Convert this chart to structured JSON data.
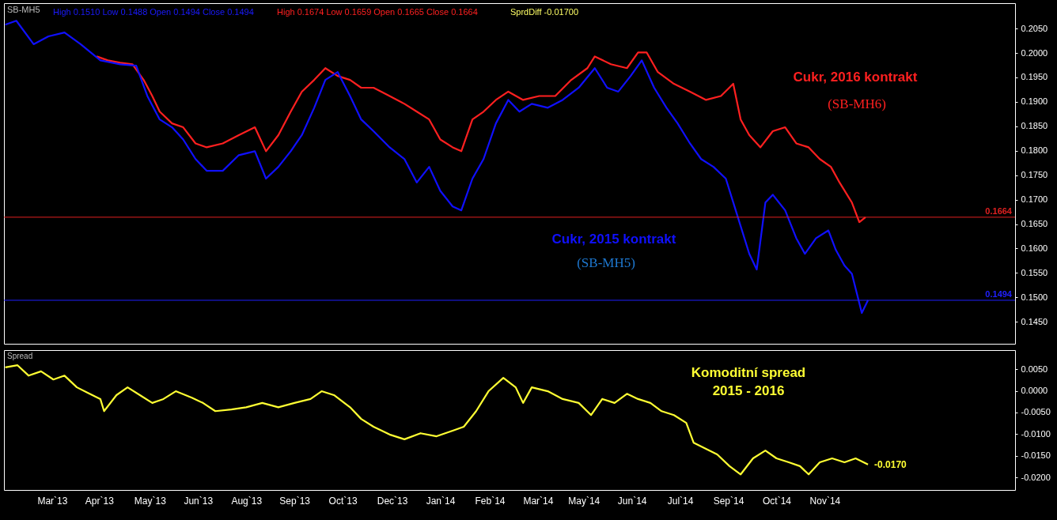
{
  "chart_data": [
    {
      "type": "line",
      "xlim": [
        "2013-01-23",
        "2015-04-21"
      ],
      "ylim": [
        0.1405,
        0.2102
      ],
      "tick_labels": "y",
      "yticks": [
        {
          "value": 0.145,
          "label": "0.1450"
        },
        {
          "value": 0.15,
          "label": "0.1500"
        },
        {
          "value": 0.155,
          "label": "0.1550"
        },
        {
          "value": 0.16,
          "label": "0.1600"
        },
        {
          "value": 0.165,
          "label": "0.1650"
        },
        {
          "value": 0.17,
          "label": "0.1700"
        },
        {
          "value": 0.175,
          "label": "0.1750"
        },
        {
          "value": 0.18,
          "label": "0.1800"
        },
        {
          "value": 0.185,
          "label": "0.1850"
        },
        {
          "value": 0.19,
          "label": "0.1900"
        },
        {
          "value": 0.195,
          "label": "0.1950"
        },
        {
          "value": 0.2,
          "label": "0.2000"
        },
        {
          "value": 0.205,
          "label": "0.2050"
        }
      ],
      "series": [
        {
          "name": "Cukr, 2016 kontrakt",
          "color": "#ff2020",
          "x": [
            "2013-04-08",
            "2013-04-17",
            "2013-04-27",
            "2013-05-07",
            "2013-05-16",
            "2013-05-23",
            "2013-05-29",
            "2013-06-08",
            "2013-06-17",
            "2013-06-27",
            "2013-07-06",
            "2013-07-19",
            "2013-08-01",
            "2013-08-14",
            "2013-08-23",
            "2013-09-02",
            "2013-09-12",
            "2013-09-21",
            "2013-10-01",
            "2013-10-10",
            "2013-10-20",
            "2013-10-30",
            "2013-11-08",
            "2013-11-18",
            "2013-12-01",
            "2013-12-13",
            "2013-12-23",
            "2014-01-02",
            "2014-01-11",
            "2014-01-21",
            "2014-01-28",
            "2014-02-06",
            "2014-02-15",
            "2014-02-25",
            "2014-03-07",
            "2014-03-19",
            "2014-04-01",
            "2014-04-14",
            "2014-04-27",
            "2014-05-10",
            "2014-05-16",
            "2014-05-29",
            "2014-06-11",
            "2014-06-20",
            "2014-06-27",
            "2014-07-06",
            "2014-07-19",
            "2014-08-01",
            "2014-08-14",
            "2014-08-26",
            "2014-09-05",
            "2014-09-11",
            "2014-09-18",
            "2014-09-27",
            "2014-10-07",
            "2014-10-17",
            "2014-10-26",
            "2014-11-05",
            "2014-11-14",
            "2014-11-23",
            "2014-11-30",
            "2014-12-10",
            "2014-12-16",
            "2014-12-21"
          ],
          "values": [
            0.1993,
            0.1985,
            0.198,
            0.1977,
            0.1945,
            0.1912,
            0.188,
            0.1856,
            0.1848,
            0.1815,
            0.1807,
            0.1815,
            0.1832,
            0.1848,
            0.1799,
            0.1832,
            0.188,
            0.1921,
            0.1945,
            0.1969,
            0.1953,
            0.1945,
            0.1929,
            0.1929,
            0.1912,
            0.1896,
            0.188,
            0.1864,
            0.1823,
            0.1807,
            0.1799,
            0.1864,
            0.188,
            0.1904,
            0.1921,
            0.1904,
            0.1912,
            0.1912,
            0.1945,
            0.1969,
            0.1993,
            0.1977,
            0.1969,
            0.2001,
            0.2001,
            0.1961,
            0.1937,
            0.1921,
            0.1904,
            0.1912,
            0.1937,
            0.1864,
            0.1832,
            0.1807,
            0.184,
            0.1848,
            0.1815,
            0.1807,
            0.1783,
            0.1767,
            0.1735,
            0.1694,
            0.1654,
            0.1664
          ]
        },
        {
          "name": "Cukr, 2015 kontrakt",
          "color": "#1010ff",
          "x": [
            "2013-01-24",
            "2013-02-02",
            "2013-02-16",
            "2013-02-28",
            "2013-03-13",
            "2013-03-26",
            "2013-04-11",
            "2013-04-27",
            "2013-05-10",
            "2013-05-19",
            "2013-05-29",
            "2013-06-08",
            "2013-06-17",
            "2013-06-27",
            "2013-07-06",
            "2013-07-19",
            "2013-08-01",
            "2013-08-14",
            "2013-08-23",
            "2013-09-02",
            "2013-09-12",
            "2013-09-21",
            "2013-10-01",
            "2013-10-10",
            "2013-10-20",
            "2013-10-30",
            "2013-11-08",
            "2013-11-18",
            "2013-12-01",
            "2013-12-13",
            "2013-12-23",
            "2014-01-02",
            "2014-01-11",
            "2014-01-21",
            "2014-01-28",
            "2014-02-06",
            "2014-02-15",
            "2014-02-25",
            "2014-03-07",
            "2014-03-16",
            "2014-03-26",
            "2014-04-08",
            "2014-04-20",
            "2014-05-03",
            "2014-05-16",
            "2014-05-26",
            "2014-06-04",
            "2014-06-14",
            "2014-06-23",
            "2014-07-03",
            "2014-07-13",
            "2014-07-22",
            "2014-08-01",
            "2014-08-10",
            "2014-08-20",
            "2014-08-30",
            "2014-09-08",
            "2014-09-18",
            "2014-09-24",
            "2014-10-01",
            "2014-10-07",
            "2014-10-17",
            "2014-10-26",
            "2014-11-02",
            "2014-11-11",
            "2014-11-21",
            "2014-11-27",
            "2014-12-04",
            "2014-12-10",
            "2014-12-14",
            "2014-12-18",
            "2014-12-23"
          ],
          "values": [
            0.2058,
            0.2066,
            0.2018,
            0.2034,
            0.2042,
            0.2018,
            0.1985,
            0.1977,
            0.1974,
            0.1912,
            0.1864,
            0.1848,
            0.1823,
            0.1783,
            0.1759,
            0.1759,
            0.1791,
            0.1799,
            0.1743,
            0.1767,
            0.1799,
            0.1832,
            0.1888,
            0.1945,
            0.1961,
            0.1912,
            0.1864,
            0.184,
            0.1807,
            0.1783,
            0.1735,
            0.1767,
            0.1718,
            0.1686,
            0.1678,
            0.1743,
            0.1783,
            0.1856,
            0.1904,
            0.188,
            0.1896,
            0.1888,
            0.1904,
            0.1929,
            0.1969,
            0.1929,
            0.1921,
            0.1953,
            0.1985,
            0.1929,
            0.1888,
            0.1856,
            0.1815,
            0.1783,
            0.1767,
            0.1743,
            0.167,
            0.1589,
            0.1557,
            0.1694,
            0.171,
            0.1678,
            0.1621,
            0.1589,
            0.1621,
            0.1637,
            0.1597,
            0.1565,
            0.1548,
            0.1508,
            0.1468,
            0.1494
          ]
        }
      ],
      "ref_lines": [
        {
          "axis": "y",
          "value": 0.1664,
          "label": "0.1664",
          "color": "#e02020"
        },
        {
          "axis": "y",
          "value": 0.1494,
          "label": "0.1494",
          "color": "#2020ff"
        }
      ],
      "annotations": [
        "SB-MH5",
        "High 0.1510  Low 0.1488  Open 0.1494  Close 0.1494",
        "High 0.1674  Low 0.1659  Open 0.1665  Close 0.1664",
        "SprdDiff -0.01700",
        "(SB-MH6)",
        "(SB-MH5)"
      ]
    },
    {
      "type": "line",
      "title": "Spread",
      "xlim": [
        "2013-01-23",
        "2015-04-21"
      ],
      "ylim": [
        -0.0229,
        0.0094
      ],
      "xticks": [
        {
          "value": "2013-03-03",
          "label": "Mar`13"
        },
        {
          "value": "2013-04-10",
          "label": "Apr`13"
        },
        {
          "value": "2013-05-21",
          "label": "May`13"
        },
        {
          "value": "2013-06-29",
          "label": "Jun`13"
        },
        {
          "value": "2013-08-07",
          "label": "Aug`13"
        },
        {
          "value": "2013-09-15",
          "label": "Sep`13"
        },
        {
          "value": "2013-10-24",
          "label": "Oct`13"
        },
        {
          "value": "2013-12-03",
          "label": "Dec`13"
        },
        {
          "value": "2014-01-11",
          "label": "Jan`14"
        },
        {
          "value": "2014-02-20",
          "label": "Feb`14"
        },
        {
          "value": "2014-03-31",
          "label": "Mar`14"
        },
        {
          "value": "2014-05-07",
          "label": "May`14"
        },
        {
          "value": "2014-06-15",
          "label": "Jun`14"
        },
        {
          "value": "2014-07-24",
          "label": "Jul`14"
        },
        {
          "value": "2014-09-01",
          "label": "Sep`14"
        },
        {
          "value": "2014-10-10",
          "label": "Oct`14"
        },
        {
          "value": "2014-11-18",
          "label": "Nov`14"
        }
      ],
      "yticks": [
        {
          "value": -0.02,
          "label": "-0.0200"
        },
        {
          "value": -0.015,
          "label": "-0.0150"
        },
        {
          "value": -0.01,
          "label": "-0.0100"
        },
        {
          "value": -0.005,
          "label": "-0.0050"
        },
        {
          "value": 0,
          "label": "0.0000"
        },
        {
          "value": 0.005,
          "label": "0.0050"
        }
      ],
      "series": [
        {
          "color": "#ffff33",
          "x": [
            "2013-01-24",
            "2013-02-03",
            "2013-02-12",
            "2013-02-22",
            "2013-03-04",
            "2013-03-13",
            "2013-03-23",
            "2013-04-01",
            "2013-04-11",
            "2013-04-14",
            "2013-04-24",
            "2013-05-03",
            "2013-05-13",
            "2013-05-23",
            "2013-06-01",
            "2013-06-11",
            "2013-06-24",
            "2013-07-03",
            "2013-07-13",
            "2013-07-26",
            "2013-08-07",
            "2013-08-20",
            "2013-09-02",
            "2013-09-15",
            "2013-09-28",
            "2013-10-07",
            "2013-10-17",
            "2013-10-30",
            "2013-11-08",
            "2013-11-18",
            "2013-12-01",
            "2013-12-13",
            "2013-12-26",
            "2014-01-08",
            "2014-01-21",
            "2014-01-30",
            "2014-02-09",
            "2014-02-19",
            "2014-03-03",
            "2014-03-13",
            "2014-03-19",
            "2014-03-26",
            "2014-04-08",
            "2014-04-20",
            "2014-05-03",
            "2014-05-13",
            "2014-05-22",
            "2014-06-01",
            "2014-06-11",
            "2014-06-20",
            "2014-06-30",
            "2014-07-09",
            "2014-07-19",
            "2014-07-29",
            "2014-08-04",
            "2014-08-14",
            "2014-08-23",
            "2014-09-02",
            "2014-09-11",
            "2014-09-21",
            "2014-10-01",
            "2014-10-10",
            "2014-10-20",
            "2014-10-29",
            "2014-11-05",
            "2014-11-14",
            "2014-11-24",
            "2014-12-04",
            "2014-12-13",
            "2014-12-23"
          ],
          "values": [
            0.0054,
            0.0059,
            0.0035,
            0.0045,
            0.0026,
            0.0035,
            0.0008,
            -0.0005,
            -0.0019,
            -0.0047,
            -0.001,
            0.0008,
            -0.001,
            -0.0028,
            -0.0019,
            -0.0001,
            -0.0016,
            -0.0028,
            -0.0047,
            -0.0043,
            -0.0038,
            -0.0028,
            -0.0038,
            -0.0028,
            -0.0019,
            -0.0001,
            -0.001,
            -0.0038,
            -0.0065,
            -0.0083,
            -0.0101,
            -0.0112,
            -0.0098,
            -0.0105,
            -0.0092,
            -0.0083,
            -0.0047,
            -0.0001,
            0.003,
            0.0008,
            -0.0028,
            0.0008,
            -0.0001,
            -0.0019,
            -0.0028,
            -0.0056,
            -0.0019,
            -0.0028,
            -0.0007,
            -0.0019,
            -0.0028,
            -0.0047,
            -0.0056,
            -0.0074,
            -0.012,
            -0.0134,
            -0.0147,
            -0.0174,
            -0.0193,
            -0.0156,
            -0.0138,
            -0.0156,
            -0.0165,
            -0.0174,
            -0.0193,
            -0.0165,
            -0.0156,
            -0.0165,
            -0.0156,
            -0.017
          ]
        }
      ],
      "annotations": [
        "Komoditní spread",
        "2015 - 2016",
        {
          "text": "-0.0170",
          "x": "2014-12-23",
          "y": -0.017
        }
      ]
    }
  ]
}
